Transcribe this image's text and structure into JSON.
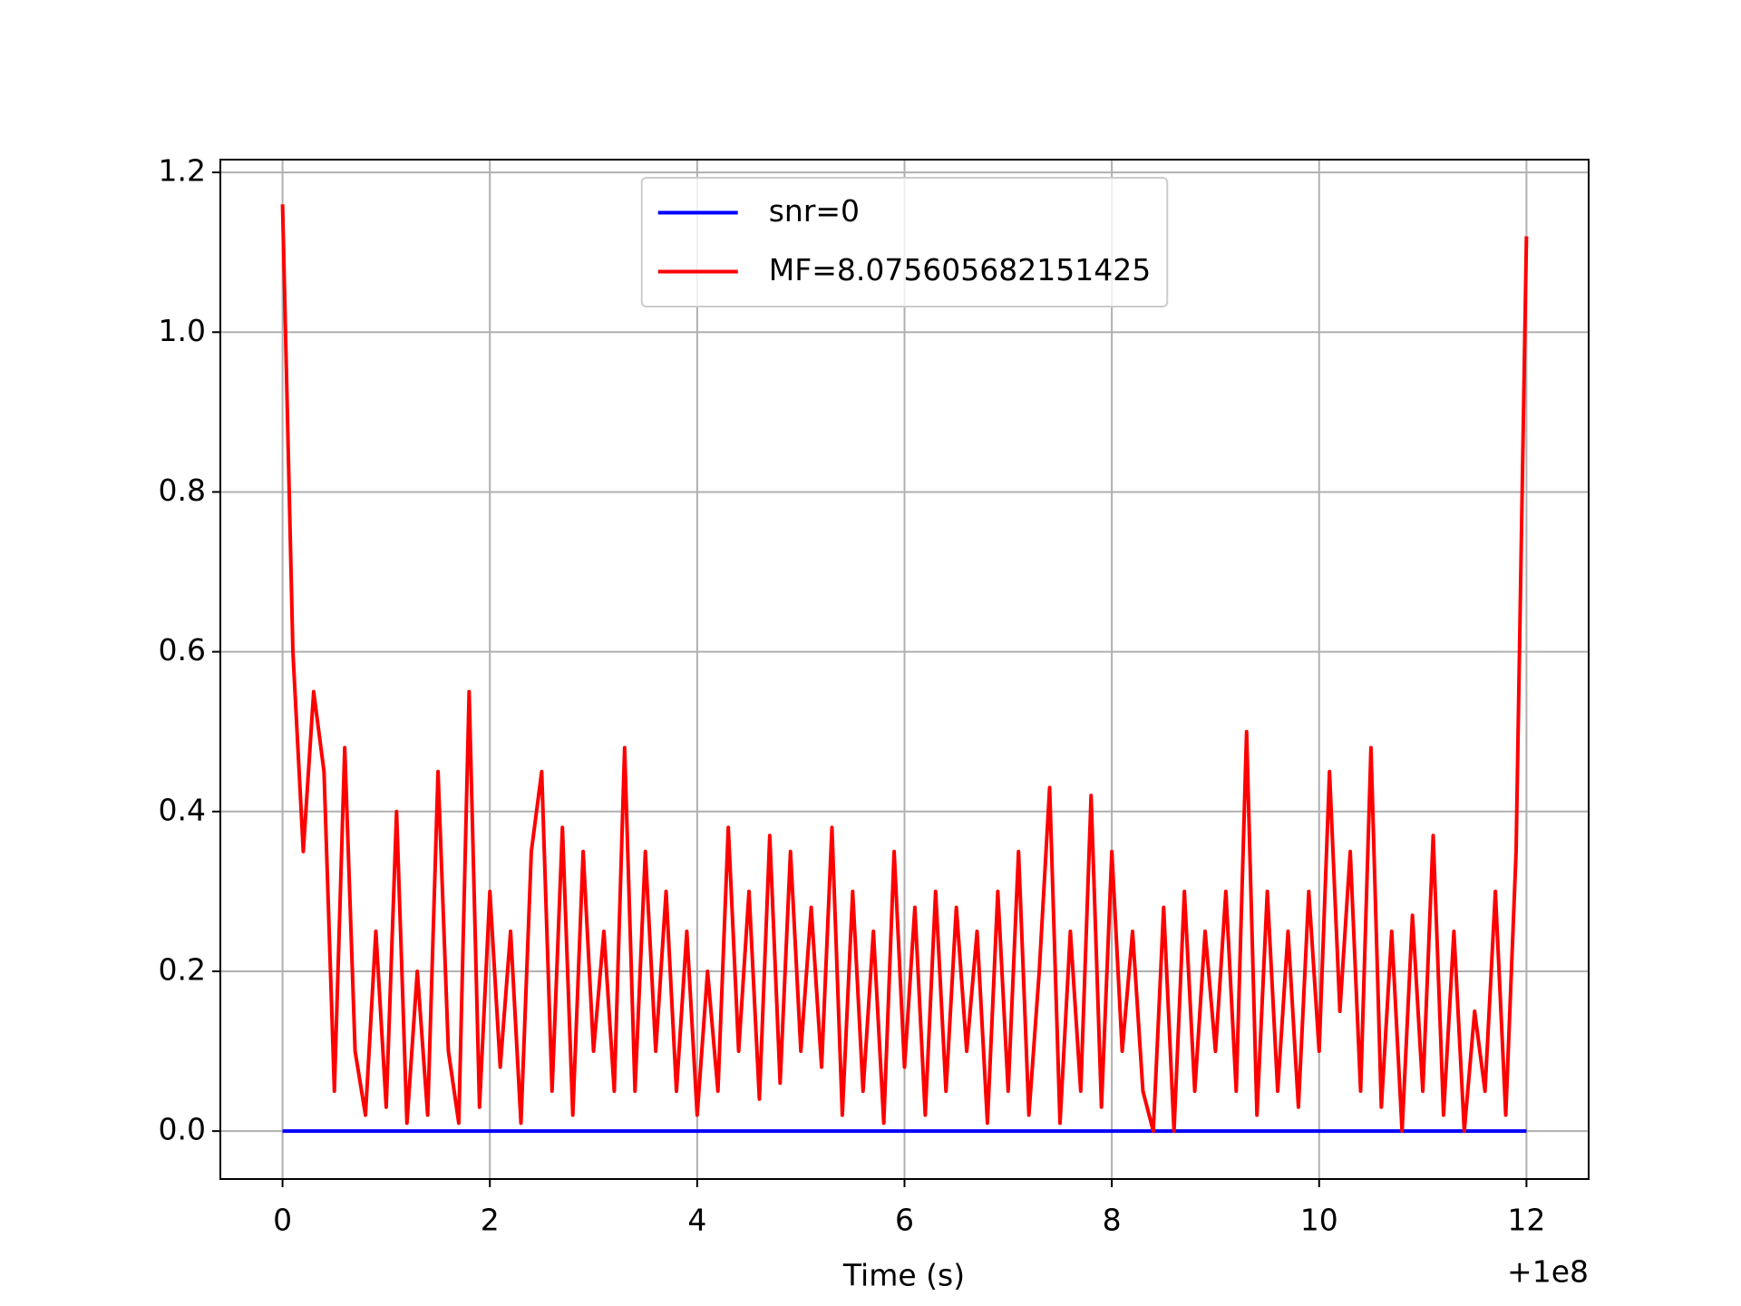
{
  "chart_data": {
    "type": "line",
    "x_label": "Time (s)",
    "x_offset_label": "+1e8",
    "x": [
      0,
      0.1,
      0.2,
      0.3,
      0.4,
      0.5,
      0.6,
      0.7,
      0.8,
      0.9,
      1,
      1.1,
      1.2,
      1.3,
      1.4,
      1.5,
      1.6,
      1.7,
      1.8,
      1.9,
      2,
      2.1,
      2.2,
      2.3,
      2.4,
      2.5,
      2.6,
      2.7,
      2.8,
      2.9,
      3,
      3.1,
      3.2,
      3.3,
      3.4,
      3.5,
      3.6,
      3.7,
      3.8,
      3.9,
      4,
      4.1,
      4.2,
      4.3,
      4.4,
      4.5,
      4.6,
      4.7,
      4.8,
      4.9,
      5,
      5.1,
      5.2,
      5.3,
      5.4,
      5.5,
      5.6,
      5.7,
      5.8,
      5.9,
      6,
      6.1,
      6.2,
      6.3,
      6.4,
      6.5,
      6.6,
      6.7,
      6.8,
      6.9,
      7,
      7.1,
      7.2,
      7.3,
      7.4,
      7.5,
      7.6,
      7.7,
      7.8,
      7.9,
      8,
      8.1,
      8.2,
      8.3,
      8.4,
      8.5,
      8.6,
      8.7,
      8.8,
      8.9,
      9,
      9.1,
      9.2,
      9.3,
      9.4,
      9.5,
      9.6,
      9.7,
      9.8,
      9.9,
      10,
      10.1,
      10.2,
      10.3,
      10.4,
      10.5,
      10.6,
      10.7,
      10.8,
      10.9,
      11,
      11.1,
      11.2,
      11.3,
      11.4,
      11.5,
      11.6,
      11.7,
      11.8,
      11.9,
      12
    ],
    "series": [
      {
        "name": "snr=0",
        "color": "#0000ff",
        "values": [
          0,
          0,
          0,
          0,
          0,
          0,
          0,
          0,
          0,
          0,
          0,
          0,
          0,
          0,
          0,
          0,
          0,
          0,
          0,
          0,
          0,
          0,
          0,
          0,
          0,
          0,
          0,
          0,
          0,
          0,
          0,
          0,
          0,
          0,
          0,
          0,
          0,
          0,
          0,
          0,
          0,
          0,
          0,
          0,
          0,
          0,
          0,
          0,
          0,
          0,
          0,
          0,
          0,
          0,
          0,
          0,
          0,
          0,
          0,
          0,
          0,
          0,
          0,
          0,
          0,
          0,
          0,
          0,
          0,
          0,
          0,
          0,
          0,
          0,
          0,
          0,
          0,
          0,
          0,
          0,
          0,
          0,
          0,
          0,
          0,
          0,
          0,
          0,
          0,
          0,
          0,
          0,
          0,
          0,
          0,
          0,
          0,
          0,
          0,
          0,
          0,
          0,
          0,
          0,
          0,
          0,
          0,
          0,
          0,
          0,
          0,
          0,
          0,
          0,
          0,
          0,
          0,
          0,
          0,
          0,
          0
        ]
      },
      {
        "name": "MF=8.075605682151425",
        "color": "#ff0000",
        "values": [
          1.16,
          0.6,
          0.35,
          0.55,
          0.45,
          0.05,
          0.48,
          0.1,
          0.02,
          0.25,
          0.03,
          0.4,
          0.01,
          0.2,
          0.02,
          0.45,
          0.1,
          0.01,
          0.55,
          0.03,
          0.3,
          0.08,
          0.25,
          0.01,
          0.35,
          0.45,
          0.05,
          0.38,
          0.02,
          0.35,
          0.1,
          0.25,
          0.05,
          0.48,
          0.05,
          0.35,
          0.1,
          0.3,
          0.05,
          0.25,
          0.02,
          0.2,
          0.05,
          0.38,
          0.1,
          0.3,
          0.04,
          0.37,
          0.06,
          0.35,
          0.1,
          0.28,
          0.08,
          0.38,
          0.02,
          0.3,
          0.05,
          0.25,
          0.01,
          0.35,
          0.08,
          0.28,
          0.02,
          0.3,
          0.05,
          0.28,
          0.1,
          0.25,
          0.01,
          0.3,
          0.05,
          0.35,
          0.02,
          0.2,
          0.43,
          0.01,
          0.25,
          0.05,
          0.42,
          0.03,
          0.35,
          0.1,
          0.25,
          0.05,
          0,
          0.28,
          0,
          0.3,
          0.05,
          0.25,
          0.1,
          0.3,
          0.05,
          0.5,
          0.02,
          0.3,
          0.05,
          0.25,
          0.03,
          0.3,
          0.1,
          0.45,
          0.15,
          0.35,
          0.05,
          0.48,
          0.03,
          0.25,
          0,
          0.27,
          0.05,
          0.37,
          0.02,
          0.25,
          0,
          0.15,
          0.05,
          0.3,
          0.02,
          0.35,
          1.12
        ]
      }
    ],
    "xlim": [
      -0.6,
      12.6
    ],
    "xticks": [
      0,
      2,
      4,
      6,
      8,
      10,
      12
    ],
    "ylim": [
      -0.06,
      1.216
    ],
    "yticks": [
      {
        "value": 0,
        "label": "0.0"
      },
      {
        "value": 0.2,
        "label": "0.2"
      },
      {
        "value": 0.4,
        "label": "0.4"
      },
      {
        "value": 0.6,
        "label": "0.6"
      },
      {
        "value": 0.8,
        "label": "0.8"
      },
      {
        "value": 1,
        "label": "1.0"
      },
      {
        "value": 1.2,
        "label": "1.2"
      }
    ],
    "grid": true,
    "legend": "upper center"
  }
}
